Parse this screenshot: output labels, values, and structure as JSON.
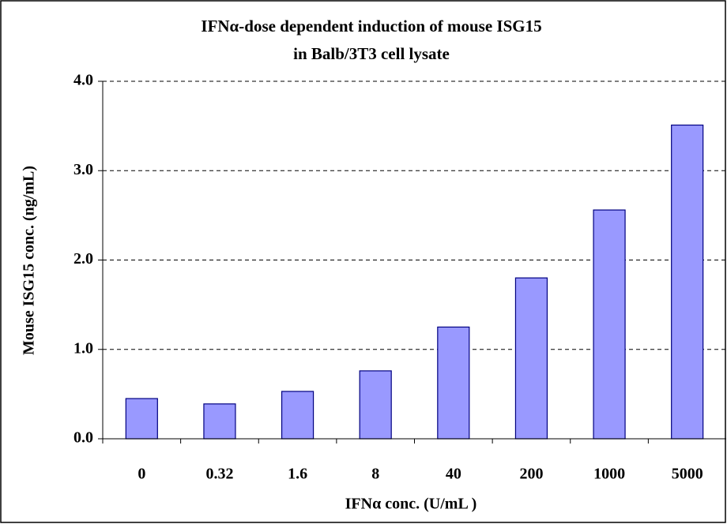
{
  "chart_data": {
    "type": "bar",
    "title": [
      "IFNα-dose dependent induction of mouse ISG15",
      "in Balb/3T3 cell lysate"
    ],
    "x_label": "IFNα conc. (U/mL )",
    "y_label": "Mouse ISG15 conc. (ng/mL)",
    "categories": [
      "0",
      "0.32",
      "1.6",
      "8",
      "40",
      "200",
      "1000",
      "5000"
    ],
    "values": [
      0.45,
      0.39,
      0.53,
      0.76,
      1.25,
      1.8,
      2.56,
      3.51
    ],
    "color": "#9999ff",
    "ylim": [
      0,
      4
    ],
    "yticks": [
      {
        "value": 0,
        "label": "0.0"
      },
      {
        "value": 1,
        "label": "1.0"
      },
      {
        "value": 2,
        "label": "2.0"
      },
      {
        "value": 3,
        "label": "3.0"
      },
      {
        "value": 4,
        "label": "4.0"
      }
    ],
    "grid": true
  }
}
